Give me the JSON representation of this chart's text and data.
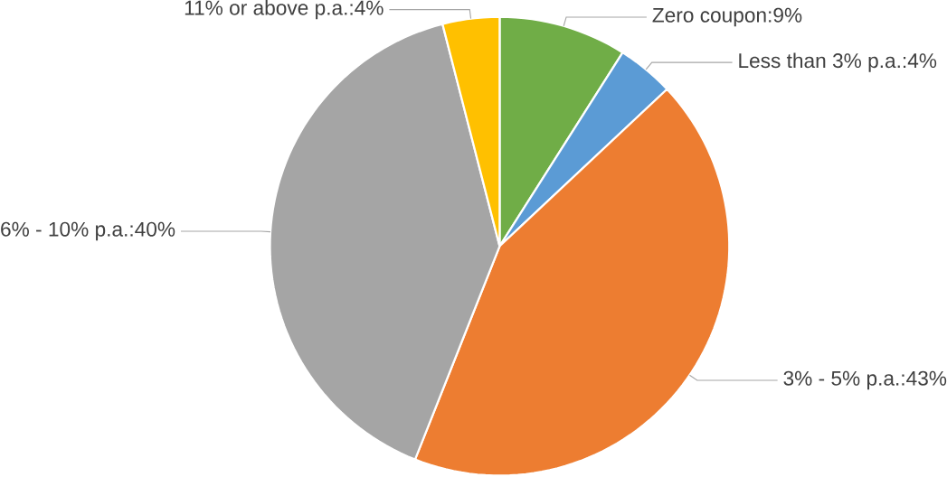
{
  "chart_data": {
    "type": "pie",
    "categories": [
      "Zero coupon:9%",
      "Less than 3% p.a.:4%",
      "3% - 5% p.a.:43%",
      "6% - 10% p.a.:40%",
      "11% or above p.a.:4%"
    ],
    "values": [
      9,
      4,
      43,
      40,
      4
    ],
    "colors": [
      "#70ad47",
      "#5b9bd5",
      "#ed7d31",
      "#a5a5a5",
      "#ffc000"
    ]
  }
}
